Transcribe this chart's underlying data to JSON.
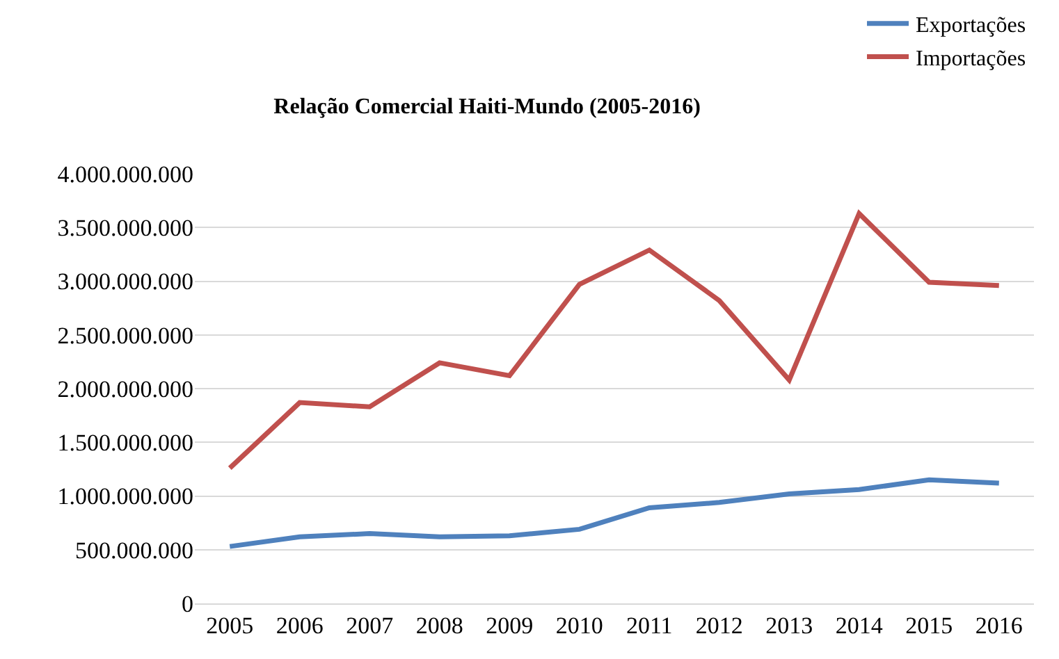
{
  "chart_data": {
    "type": "line",
    "title": "Relação Comercial Haiti-Mundo (2005-2016)",
    "categories": [
      "2005",
      "2006",
      "2007",
      "2008",
      "2009",
      "2010",
      "2011",
      "2012",
      "2013",
      "2014",
      "2015",
      "2016"
    ],
    "series": [
      {
        "name": "Exportações",
        "color": "#4f81bd",
        "values": [
          530000000,
          620000000,
          650000000,
          620000000,
          630000000,
          690000000,
          890000000,
          940000000,
          1020000000,
          1060000000,
          1150000000,
          1120000000
        ]
      },
      {
        "name": "Importações",
        "color": "#c0504d",
        "values": [
          1260000000,
          1870000000,
          1830000000,
          2240000000,
          2120000000,
          2970000000,
          3290000000,
          2820000000,
          2080000000,
          3630000000,
          2990000000,
          2960000000
        ]
      }
    ],
    "ylim": [
      0,
      4000000000
    ],
    "yticks": [
      {
        "value": 0,
        "label": "0"
      },
      {
        "value": 500000000,
        "label": "500.000.000"
      },
      {
        "value": 1000000000,
        "label": "1.000.000.000"
      },
      {
        "value": 1500000000,
        "label": "1.500.000.000"
      },
      {
        "value": 2000000000,
        "label": "2.000.000.000"
      },
      {
        "value": 2500000000,
        "label": "2.500.000.000"
      },
      {
        "value": 3000000000,
        "label": "3.000.000.000"
      },
      {
        "value": 3500000000,
        "label": "3.500.000.000"
      },
      {
        "value": 4000000000,
        "label": "4.000.000.000"
      }
    ],
    "grid": "y",
    "legend": "top right",
    "marker": "none",
    "line_style": "solid"
  }
}
